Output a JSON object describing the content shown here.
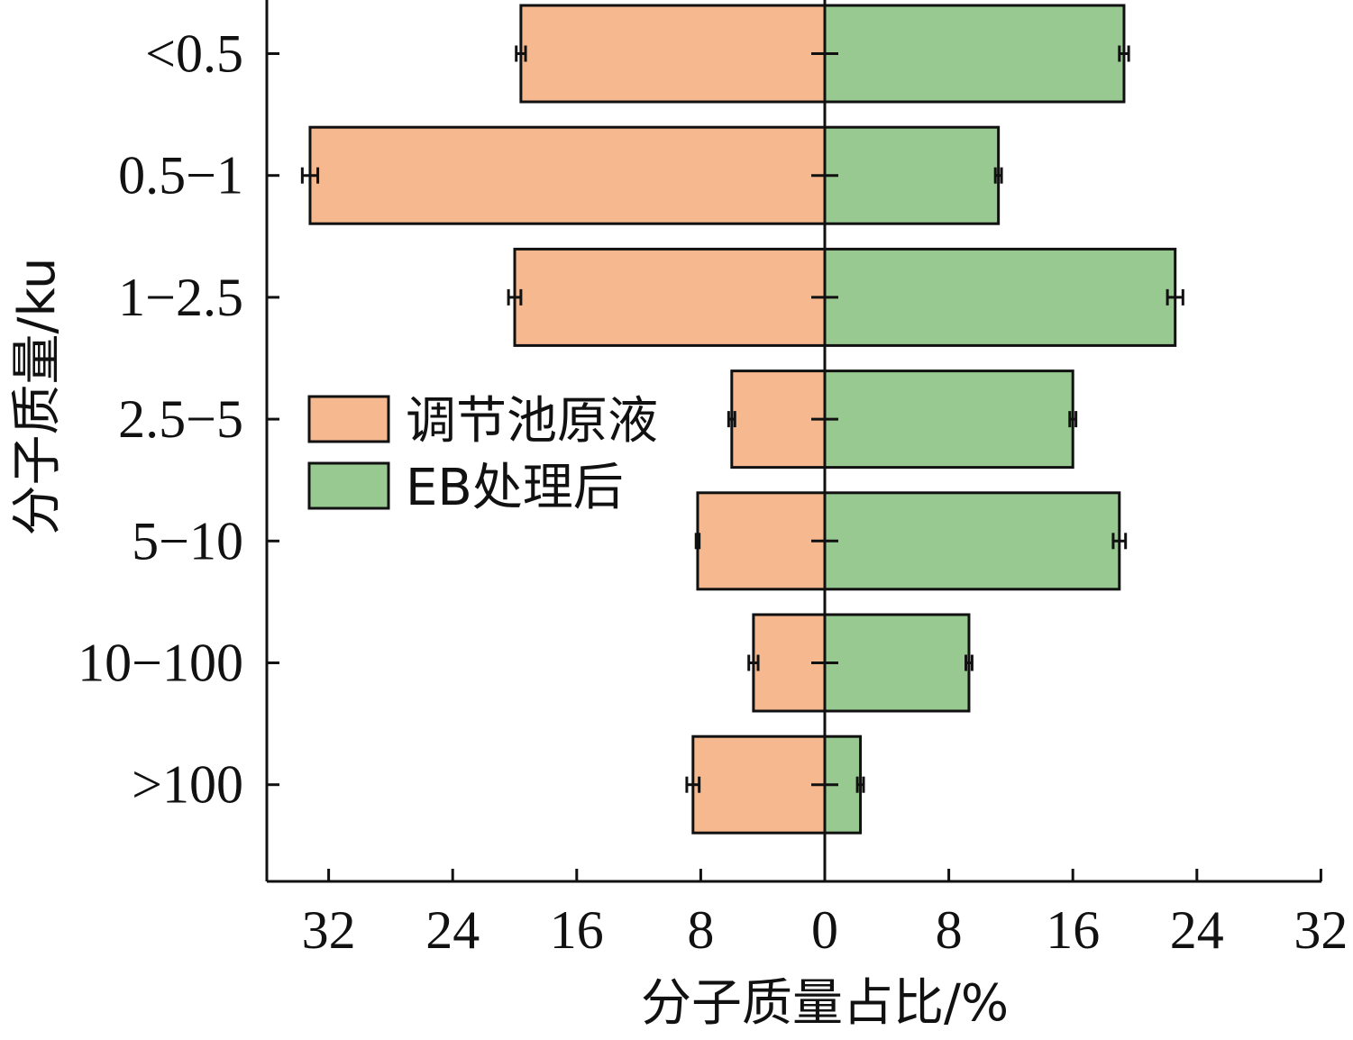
{
  "chart_data": {
    "type": "bar",
    "orientation": "horizontal-diverging",
    "categories": [
      "<0.5",
      "0.5−1",
      "1−2.5",
      "2.5−5",
      "5−10",
      "10−100",
      ">100"
    ],
    "series": [
      {
        "name": "调节池原液",
        "side": "left",
        "color": "#f5b88f",
        "values": [
          19.6,
          33.2,
          20.0,
          6.0,
          8.2,
          4.6,
          8.5
        ],
        "errors": [
          0.3,
          0.5,
          0.4,
          0.2,
          0.1,
          0.3,
          0.4
        ]
      },
      {
        "name": "EB处理后",
        "side": "right",
        "color": "#98c990",
        "values": [
          19.3,
          11.2,
          22.6,
          16.0,
          19.0,
          9.3,
          2.3
        ],
        "errors": [
          0.3,
          0.2,
          0.5,
          0.2,
          0.4,
          0.2,
          0.2
        ]
      }
    ],
    "xlabel": "分子质量占比/%",
    "ylabel": "分子质量/ku",
    "xlim": [
      -34,
      32
    ],
    "xticks": [
      -32,
      -24,
      -16,
      -8,
      0,
      8,
      16,
      24,
      32
    ],
    "xtick_labels": [
      "32",
      "24",
      "16",
      "8",
      "0",
      "8",
      "16",
      "24",
      "32"
    ],
    "legend_position": "center-left",
    "grid": false
  }
}
